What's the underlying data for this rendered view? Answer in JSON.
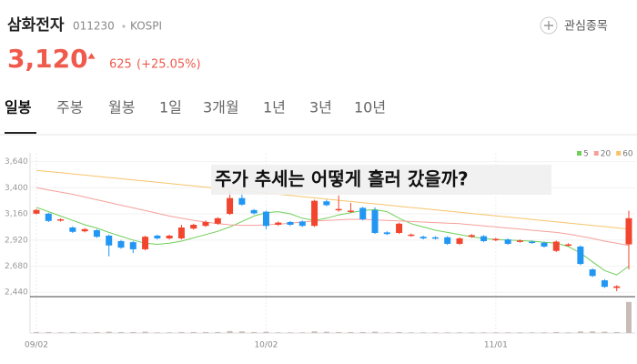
{
  "header": {
    "name": "삼화전자",
    "code": "011230",
    "market": "KOSPI",
    "price": "3,120",
    "change": "625",
    "change_pct": "(+25.05%)",
    "watchlist": "관심종목"
  },
  "tabs": [
    "일봉",
    "주봉",
    "월봉",
    "1일",
    "3개월",
    "1년",
    "3년",
    "10년"
  ],
  "chart_data": {
    "type": "candlestick",
    "title": "주가 추세는 어떻게 흘러 갔을까?",
    "categories": [
      "09/02",
      null,
      null,
      null,
      null,
      null,
      null,
      null,
      null,
      null,
      null,
      null,
      null,
      null,
      null,
      null,
      null,
      null,
      null,
      "10/02",
      null,
      null,
      null,
      null,
      null,
      null,
      null,
      null,
      null,
      null,
      null,
      null,
      null,
      null,
      null,
      null,
      null,
      null,
      "11/01",
      null,
      null,
      null,
      null,
      null,
      null,
      null,
      null,
      null,
      null,
      null
    ],
    "open": [
      3162,
      3162,
      3100,
      3035,
      3000,
      3010,
      2960,
      2910,
      2900,
      2835,
      2960,
      2935,
      2935,
      3025,
      3050,
      3070,
      3160,
      3305,
      3195,
      3180,
      3060,
      3085,
      3090,
      3050,
      3275,
      3195,
      3180,
      3215,
      3195,
      2990,
      2985,
      2960,
      2950,
      2945,
      2945,
      2885,
      2950,
      2955,
      2920,
      2925,
      2905,
      2905,
      2895,
      2820,
      2870,
      2860,
      2650,
      2550,
      2480,
      2880
    ],
    "high": [
      3205,
      3170,
      3120,
      3045,
      3030,
      3020,
      2970,
      2920,
      2910,
      2960,
      2970,
      2970,
      3060,
      3070,
      3100,
      3130,
      3370,
      3365,
      3205,
      3190,
      3090,
      3095,
      3100,
      3290,
      3290,
      3330,
      3260,
      3225,
      3220,
      3000,
      3080,
      2980,
      2960,
      2955,
      2955,
      2945,
      2975,
      2965,
      2940,
      2935,
      2925,
      2915,
      2905,
      2915,
      2890,
      2870,
      2660,
      2560,
      2505,
      3190
    ],
    "low": [
      3155,
      3085,
      3090,
      2985,
      2990,
      2940,
      2770,
      2840,
      2800,
      2825,
      2925,
      2925,
      2925,
      3015,
      3040,
      3060,
      3150,
      3235,
      3155,
      3020,
      3050,
      3050,
      3040,
      3040,
      3230,
      3180,
      3170,
      3100,
      2975,
      2965,
      2975,
      2950,
      2925,
      2925,
      2875,
      2875,
      2940,
      2900,
      2910,
      2875,
      2895,
      2885,
      2850,
      2810,
      2860,
      2690,
      2580,
      2480,
      2450,
      2650
    ],
    "close": [
      3196,
      3095,
      3110,
      2995,
      3020,
      2950,
      2870,
      2850,
      2835,
      2950,
      2935,
      2960,
      3035,
      3060,
      3085,
      3120,
      3305,
      3245,
      3165,
      3050,
      3080,
      3060,
      3050,
      3280,
      3240,
      3205,
      3190,
      3110,
      2985,
      2975,
      3070,
      2970,
      2935,
      2935,
      2885,
      2935,
      2965,
      2910,
      2930,
      2885,
      2915,
      2895,
      2860,
      2905,
      2880,
      2700,
      2590,
      2490,
      2495,
      3120
    ],
    "up_color": "#f2452e",
    "down_color": "#2196f3",
    "series": [
      {
        "name": "5",
        "color": "#6fcf5a",
        "values": [
          3220,
          3180,
          3140,
          3100,
          3060,
          3030,
          2990,
          2955,
          2920,
          2890,
          2880,
          2890,
          2910,
          2940,
          2970,
          3000,
          3040,
          3090,
          3140,
          3170,
          3180,
          3160,
          3120,
          3100,
          3120,
          3150,
          3170,
          3190,
          3200,
          3180,
          3120,
          3070,
          3040,
          3010,
          2990,
          2970,
          2950,
          2935,
          2925,
          2920,
          2915,
          2910,
          2900,
          2890,
          2860,
          2800,
          2720,
          2640,
          2600,
          2680
        ]
      },
      {
        "name": "20",
        "color": "#f5a09a",
        "values": [
          3400,
          3380,
          3360,
          3340,
          3315,
          3290,
          3265,
          3240,
          3215,
          3190,
          3165,
          3140,
          3120,
          3100,
          3085,
          3070,
          3060,
          3055,
          3055,
          3060,
          3065,
          3075,
          3085,
          3095,
          3100,
          3105,
          3110,
          3110,
          3105,
          3100,
          3095,
          3090,
          3085,
          3080,
          3075,
          3070,
          3060,
          3050,
          3040,
          3030,
          3020,
          3010,
          3000,
          2990,
          2975,
          2955,
          2935,
          2910,
          2890,
          2870
        ]
      },
      {
        "name": "60",
        "color": "#f7c46c",
        "values": [
          3560,
          3549,
          3538,
          3527,
          3516,
          3505,
          3494,
          3483,
          3472,
          3461,
          3450,
          3439,
          3428,
          3417,
          3406,
          3395,
          3384,
          3373,
          3362,
          3351,
          3340,
          3329,
          3318,
          3307,
          3296,
          3285,
          3274,
          3263,
          3252,
          3241,
          3230,
          3219,
          3208,
          3197,
          3186,
          3175,
          3164,
          3153,
          3142,
          3131,
          3120,
          3109,
          3098,
          3087,
          3076,
          3065,
          3054,
          3043,
          3032,
          3021
        ]
      }
    ],
    "ylim": [
      2400,
      3720
    ],
    "yticks": [
      {
        "value": 2440,
        "label": "2,440"
      },
      {
        "value": 2680,
        "label": "2,680"
      },
      {
        "value": 2920,
        "label": "2,920"
      },
      {
        "value": 3160,
        "label": "3,160"
      },
      {
        "value": 3400,
        "label": "3,400"
      },
      {
        "value": 3640,
        "label": "3,640"
      }
    ],
    "grid": true,
    "volume": {
      "color": "#c9bcb8",
      "ylim": [
        0,
        100
      ],
      "values": [
        3,
        3,
        2,
        3,
        2,
        3,
        4,
        3,
        3,
        4,
        2,
        2,
        3,
        3,
        3,
        3,
        6,
        5,
        3,
        4,
        2,
        2,
        2,
        5,
        4,
        3,
        3,
        3,
        4,
        2,
        3,
        2,
        2,
        2,
        2,
        2,
        2,
        2,
        2,
        2,
        2,
        2,
        2,
        3,
        2,
        5,
        5,
        4,
        3,
        95
      ]
    }
  }
}
